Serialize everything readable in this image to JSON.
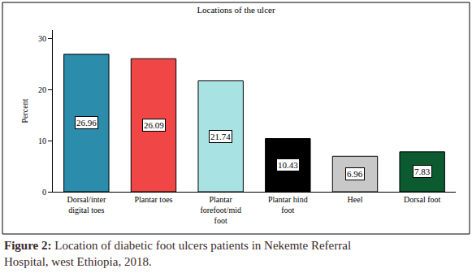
{
  "chart_data": {
    "type": "bar",
    "title": "Locations of the ulcer",
    "caption": "Figure 2: Location of diabetic foot ulcers patients in Nekemte Referral Hospital, west Ethiopia, 2018.",
    "y_label": "Percent",
    "categories": [
      "Dorsal/inter digital toes",
      "Plantar toes",
      "Plantar forefoot/mid foot",
      "Plantar hind foot",
      "Heel",
      "Dorsal foot"
    ],
    "values": [
      26.96,
      26.09,
      21.74,
      10.43,
      6.96,
      7.83
    ],
    "colors": [
      "#2b8cab",
      "#f04646",
      "#a9e2e3",
      "#000000",
      "#c8c8c8",
      "#0b5a30"
    ],
    "ylim": [
      0,
      31.7
    ],
    "yticks": [
      0,
      10,
      20,
      30
    ],
    "grid": false,
    "data_labels": true
  }
}
